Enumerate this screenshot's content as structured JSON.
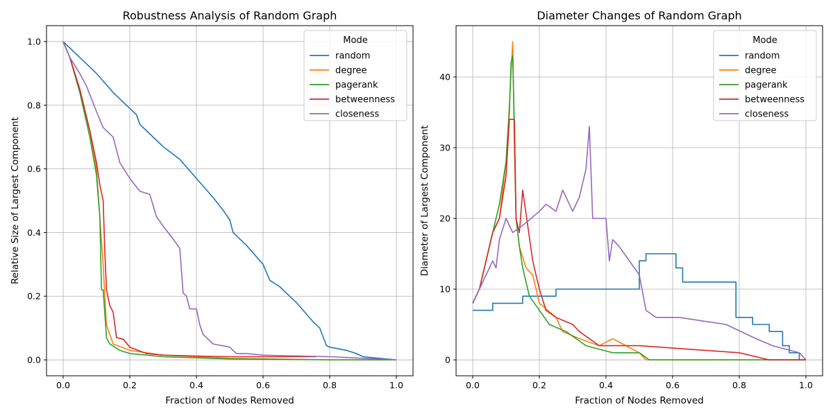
{
  "chart_data": [
    {
      "type": "line",
      "title": "Robustness Analysis of Random Graph",
      "xlabel": "Fraction of Nodes Removed",
      "ylabel": "Relative Size of Largest Component",
      "xlim": [
        -0.05,
        1.05
      ],
      "ylim": [
        -0.05,
        1.05
      ],
      "xticks": [
        0.0,
        0.2,
        0.4,
        0.6,
        0.8,
        1.0
      ],
      "xtick_labels": [
        "0.0",
        "0.2",
        "0.4",
        "0.6",
        "0.8",
        "1.0"
      ],
      "yticks": [
        0.0,
        0.2,
        0.4,
        0.6,
        0.8,
        1.0
      ],
      "ytick_labels": [
        "0.0",
        "0.2",
        "0.4",
        "0.6",
        "0.8",
        "1.0"
      ],
      "grid": true,
      "legend": {
        "title": "Mode",
        "placement": "top-right"
      },
      "series": [
        {
          "name": "random",
          "color": "#1f77b4",
          "x": [
            0.0,
            0.05,
            0.1,
            0.15,
            0.2,
            0.22,
            0.23,
            0.25,
            0.3,
            0.35,
            0.4,
            0.45,
            0.48,
            0.5,
            0.51,
            0.55,
            0.6,
            0.62,
            0.65,
            0.7,
            0.75,
            0.77,
            0.79,
            0.8,
            0.85,
            0.88,
            0.9,
            0.95,
            1.0
          ],
          "y": [
            1.0,
            0.95,
            0.9,
            0.84,
            0.79,
            0.77,
            0.74,
            0.72,
            0.67,
            0.63,
            0.57,
            0.51,
            0.47,
            0.44,
            0.4,
            0.36,
            0.3,
            0.25,
            0.23,
            0.18,
            0.12,
            0.1,
            0.045,
            0.04,
            0.03,
            0.02,
            0.01,
            0.005,
            0.0
          ]
        },
        {
          "name": "degree",
          "color": "#ff7f0e",
          "x": [
            0.0,
            0.02,
            0.05,
            0.08,
            0.1,
            0.11,
            0.12,
            0.125,
            0.13,
            0.14,
            0.15,
            0.2,
            0.3,
            0.5,
            0.8,
            1.0
          ],
          "y": [
            1.0,
            0.95,
            0.85,
            0.72,
            0.6,
            0.45,
            0.3,
            0.2,
            0.11,
            0.08,
            0.05,
            0.03,
            0.015,
            0.005,
            0.0,
            0.0
          ]
        },
        {
          "name": "pagerank",
          "color": "#2ca02c",
          "x": [
            0.0,
            0.02,
            0.05,
            0.08,
            0.1,
            0.11,
            0.115,
            0.12,
            0.13,
            0.14,
            0.17,
            0.2,
            0.3,
            0.5,
            0.8,
            1.0
          ],
          "y": [
            1.0,
            0.95,
            0.84,
            0.7,
            0.58,
            0.45,
            0.22,
            0.22,
            0.07,
            0.05,
            0.03,
            0.02,
            0.01,
            0.003,
            0.0,
            0.0
          ]
        },
        {
          "name": "betweenness",
          "color": "#d62728",
          "x": [
            0.0,
            0.02,
            0.05,
            0.08,
            0.1,
            0.11,
            0.12,
            0.125,
            0.13,
            0.14,
            0.15,
            0.16,
            0.18,
            0.2,
            0.25,
            0.3,
            0.4,
            0.5,
            0.6,
            0.76
          ],
          "y": [
            1.0,
            0.95,
            0.85,
            0.72,
            0.62,
            0.55,
            0.5,
            0.34,
            0.22,
            0.17,
            0.15,
            0.07,
            0.065,
            0.04,
            0.02,
            0.015,
            0.012,
            0.01,
            0.01,
            0.01
          ]
        },
        {
          "name": "closeness",
          "color": "#9467bd",
          "x": [
            0.0,
            0.02,
            0.05,
            0.07,
            0.1,
            0.12,
            0.15,
            0.16,
            0.17,
            0.2,
            0.23,
            0.26,
            0.28,
            0.3,
            0.33,
            0.35,
            0.36,
            0.37,
            0.38,
            0.4,
            0.41,
            0.42,
            0.45,
            0.5,
            0.52,
            0.55,
            0.6,
            0.8,
            1.0
          ],
          "y": [
            1.0,
            0.95,
            0.9,
            0.86,
            0.78,
            0.73,
            0.7,
            0.66,
            0.62,
            0.57,
            0.53,
            0.52,
            0.45,
            0.42,
            0.38,
            0.35,
            0.21,
            0.2,
            0.16,
            0.16,
            0.11,
            0.08,
            0.05,
            0.04,
            0.02,
            0.02,
            0.015,
            0.01,
            0.0
          ]
        }
      ]
    },
    {
      "type": "line",
      "title": "Diameter Changes of Random Graph",
      "xlabel": "Fraction of Nodes Removed",
      "ylabel": "Diameter of Largest Component",
      "xlim": [
        -0.05,
        1.05
      ],
      "ylim": [
        -2.25,
        47.25
      ],
      "xticks": [
        0.0,
        0.2,
        0.4,
        0.6,
        0.8,
        1.0
      ],
      "xtick_labels": [
        "0.0",
        "0.2",
        "0.4",
        "0.6",
        "0.8",
        "1.0"
      ],
      "yticks": [
        0,
        10,
        20,
        30,
        40
      ],
      "ytick_labels": [
        "0",
        "10",
        "20",
        "30",
        "40"
      ],
      "grid": true,
      "legend": {
        "title": "Mode",
        "placement": "top-right"
      },
      "series": [
        {
          "name": "random",
          "color": "#1f77b4",
          "x": [
            0.0,
            0.06,
            0.06,
            0.15,
            0.15,
            0.25,
            0.25,
            0.5,
            0.5,
            0.52,
            0.52,
            0.55,
            0.55,
            0.61,
            0.61,
            0.63,
            0.63,
            0.79,
            0.79,
            0.84,
            0.84,
            0.89,
            0.89,
            0.93,
            0.93,
            0.95,
            0.95,
            0.98,
            0.98,
            1.0
          ],
          "y": [
            7,
            7,
            8,
            8,
            9,
            9,
            10,
            10,
            14,
            14,
            15,
            15,
            15,
            15,
            13,
            13,
            11,
            11,
            6,
            6,
            5,
            5,
            4,
            4,
            2,
            2,
            1,
            1,
            0,
            0
          ]
        },
        {
          "name": "degree",
          "color": "#ff7f0e",
          "x": [
            0.0,
            0.02,
            0.04,
            0.06,
            0.08,
            0.1,
            0.11,
            0.12,
            0.125,
            0.13,
            0.14,
            0.16,
            0.18,
            0.2,
            0.25,
            0.27,
            0.32,
            0.38,
            0.42,
            0.5,
            0.52,
            0.6,
            1.0
          ],
          "y": [
            8,
            10,
            14,
            18,
            20,
            28,
            36,
            45,
            30,
            20,
            16,
            13,
            12,
            8,
            6,
            4,
            3,
            2,
            3,
            1,
            0,
            0,
            0
          ]
        },
        {
          "name": "pagerank",
          "color": "#2ca02c",
          "x": [
            0.0,
            0.02,
            0.04,
            0.06,
            0.08,
            0.1,
            0.11,
            0.115,
            0.12,
            0.125,
            0.13,
            0.14,
            0.15,
            0.17,
            0.2,
            0.23,
            0.28,
            0.34,
            0.42,
            0.5,
            0.53,
            0.6,
            1.0
          ],
          "y": [
            8,
            10,
            14,
            18,
            22,
            28,
            35,
            42,
            43,
            33,
            20,
            16,
            13,
            9,
            7,
            5,
            4,
            2,
            1,
            1,
            0,
            0,
            0
          ]
        },
        {
          "name": "betweenness",
          "color": "#d62728",
          "x": [
            0.0,
            0.02,
            0.04,
            0.06,
            0.08,
            0.1,
            0.11,
            0.12,
            0.125,
            0.13,
            0.14,
            0.15,
            0.18,
            0.2,
            0.22,
            0.25,
            0.3,
            0.32,
            0.38,
            0.5,
            0.8,
            0.89,
            0.9,
            1.0
          ],
          "y": [
            8,
            10,
            14,
            18,
            20,
            26,
            34,
            34,
            34,
            20,
            18,
            24,
            14,
            10,
            7,
            6,
            5,
            4,
            2,
            2,
            1,
            0,
            0,
            0
          ]
        },
        {
          "name": "closeness",
          "color": "#9467bd",
          "x": [
            0.0,
            0.02,
            0.04,
            0.06,
            0.07,
            0.08,
            0.1,
            0.12,
            0.15,
            0.2,
            0.22,
            0.25,
            0.27,
            0.3,
            0.32,
            0.34,
            0.35,
            0.36,
            0.4,
            0.41,
            0.42,
            0.44,
            0.5,
            0.52,
            0.55,
            0.62,
            0.76,
            0.85,
            0.9,
            0.98,
            1.0
          ],
          "y": [
            8,
            10,
            12,
            14,
            13,
            17,
            20,
            18,
            19,
            21,
            22,
            21,
            24,
            21,
            23,
            27,
            33,
            20,
            20,
            14,
            17,
            16,
            12,
            7,
            6,
            6,
            5,
            3,
            2,
            1,
            0
          ]
        }
      ]
    }
  ]
}
